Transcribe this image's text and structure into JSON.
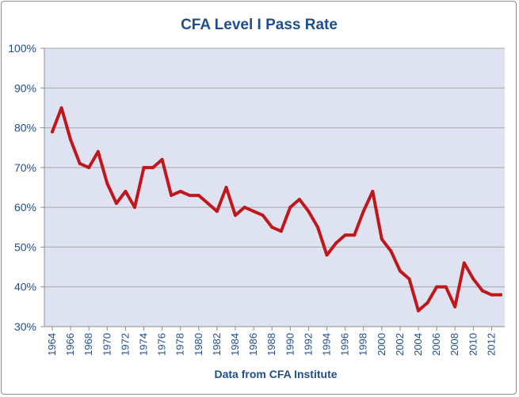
{
  "chart_data": {
    "type": "line",
    "title": "CFA Level I Pass Rate",
    "xlabel": "Data from CFA Institute",
    "ylabel": "",
    "ylim": [
      30,
      100
    ],
    "yticks": [
      30,
      40,
      50,
      60,
      70,
      80,
      90,
      100
    ],
    "ytick_labels": [
      "30%",
      "40%",
      "50%",
      "60%",
      "70%",
      "80%",
      "90%",
      "100%"
    ],
    "xlim": [
      1964,
      2013
    ],
    "xticks": [
      1964,
      1966,
      1968,
      1970,
      1972,
      1974,
      1976,
      1978,
      1980,
      1982,
      1984,
      1986,
      1988,
      1990,
      1992,
      1994,
      1996,
      1998,
      2000,
      2002,
      2004,
      2006,
      2008,
      2010,
      2012
    ],
    "grid": true,
    "plot_background": "#dfe3f1",
    "series": [
      {
        "name": "CFA Level I Pass Rate",
        "color": "#c0171c",
        "x": [
          1964,
          1965,
          1966,
          1967,
          1968,
          1969,
          1970,
          1971,
          1972,
          1973,
          1974,
          1975,
          1976,
          1977,
          1978,
          1979,
          1980,
          1981,
          1982,
          1983,
          1984,
          1985,
          1986,
          1987,
          1988,
          1989,
          1990,
          1991,
          1992,
          1993,
          1994,
          1995,
          1996,
          1997,
          1998,
          1999,
          2000,
          2001,
          2002,
          2003,
          2004,
          2005,
          2006,
          2007,
          2008,
          2009,
          2010,
          2011,
          2012,
          2013
        ],
        "values": [
          79,
          85,
          77,
          71,
          70,
          74,
          66,
          61,
          64,
          60,
          70,
          70,
          72,
          63,
          64,
          63,
          63,
          61,
          59,
          65,
          58,
          60,
          59,
          58,
          55,
          54,
          60,
          62,
          59,
          55,
          48,
          51,
          53,
          53,
          59,
          64,
          52,
          49,
          44,
          42,
          34,
          36,
          40,
          40,
          35,
          46,
          42,
          39,
          38,
          38
        ]
      }
    ]
  }
}
